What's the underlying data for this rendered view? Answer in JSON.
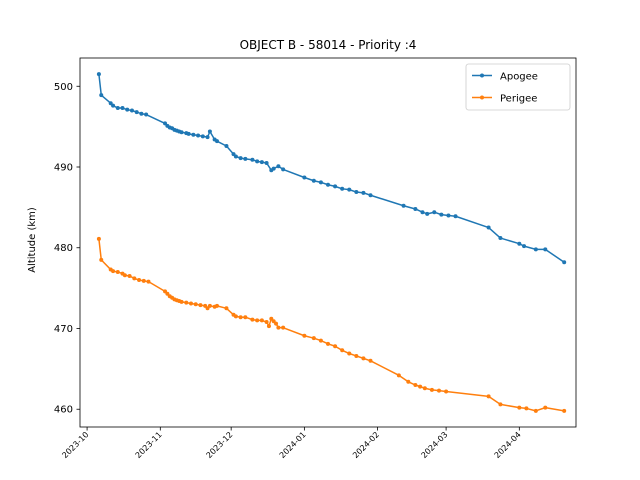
{
  "chart_data": {
    "type": "line",
    "title": "OBJECT B - 58014 - Priority :4",
    "xlabel": "",
    "ylabel": "Altitude (km)",
    "xlim": [
      "2023-09-28",
      "2024-04-25"
    ],
    "ylim": [
      457.8,
      503.5
    ],
    "x_ticks": [
      "2023-10",
      "2023-11",
      "2023-12",
      "2024-01",
      "2024-02",
      "2024-03",
      "2024-04"
    ],
    "y_ticks": [
      460,
      470,
      480,
      490,
      500
    ],
    "legend_position": "top-right",
    "grid": false,
    "series": [
      {
        "name": "Apogee",
        "color": "#1f77b4",
        "points": [
          [
            "2023-10-06",
            501.5
          ],
          [
            "2023-10-07",
            498.9
          ],
          [
            "2023-10-11",
            497.9
          ],
          [
            "2023-10-12",
            497.6
          ],
          [
            "2023-10-14",
            497.3
          ],
          [
            "2023-10-16",
            497.3
          ],
          [
            "2023-10-18",
            497.1
          ],
          [
            "2023-10-20",
            497.0
          ],
          [
            "2023-10-22",
            496.8
          ],
          [
            "2023-10-24",
            496.6
          ],
          [
            "2023-10-26",
            496.5
          ],
          [
            "2023-11-03",
            495.4
          ],
          [
            "2023-11-04",
            495.1
          ],
          [
            "2023-11-05",
            494.9
          ],
          [
            "2023-11-06",
            494.8
          ],
          [
            "2023-11-07",
            494.6
          ],
          [
            "2023-11-08",
            494.5
          ],
          [
            "2023-11-09",
            494.4
          ],
          [
            "2023-11-10",
            494.3
          ],
          [
            "2023-11-12",
            494.2
          ],
          [
            "2023-11-13",
            494.1
          ],
          [
            "2023-11-15",
            494.0
          ],
          [
            "2023-11-17",
            493.9
          ],
          [
            "2023-11-19",
            493.8
          ],
          [
            "2023-11-21",
            493.7
          ],
          [
            "2023-11-22",
            494.4
          ],
          [
            "2023-11-24",
            493.4
          ],
          [
            "2023-11-25",
            493.2
          ],
          [
            "2023-11-29",
            492.6
          ],
          [
            "2023-12-02",
            491.6
          ],
          [
            "2023-12-03",
            491.3
          ],
          [
            "2023-12-05",
            491.1
          ],
          [
            "2023-12-07",
            491.0
          ],
          [
            "2023-12-10",
            490.9
          ],
          [
            "2023-12-12",
            490.7
          ],
          [
            "2023-12-14",
            490.6
          ],
          [
            "2023-12-16",
            490.5
          ],
          [
            "2023-12-18",
            489.6
          ],
          [
            "2023-12-19",
            489.8
          ],
          [
            "2023-12-21",
            490.1
          ],
          [
            "2023-12-23",
            489.7
          ],
          [
            "2024-01-01",
            488.7
          ],
          [
            "2024-01-05",
            488.3
          ],
          [
            "2024-01-08",
            488.1
          ],
          [
            "2024-01-11",
            487.8
          ],
          [
            "2024-01-14",
            487.6
          ],
          [
            "2024-01-17",
            487.3
          ],
          [
            "2024-01-20",
            487.2
          ],
          [
            "2024-01-23",
            486.9
          ],
          [
            "2024-01-26",
            486.8
          ],
          [
            "2024-01-29",
            486.5
          ],
          [
            "2024-02-12",
            485.2
          ],
          [
            "2024-02-17",
            484.8
          ],
          [
            "2024-02-20",
            484.4
          ],
          [
            "2024-02-22",
            484.2
          ],
          [
            "2024-02-25",
            484.4
          ],
          [
            "2024-02-28",
            484.1
          ],
          [
            "2024-03-02",
            484.0
          ],
          [
            "2024-03-05",
            483.9
          ],
          [
            "2024-03-19",
            482.5
          ],
          [
            "2024-03-24",
            481.2
          ],
          [
            "2024-04-01",
            480.5
          ],
          [
            "2024-04-03",
            480.2
          ],
          [
            "2024-04-08",
            479.8
          ],
          [
            "2024-04-12",
            479.8
          ],
          [
            "2024-04-20",
            478.2
          ]
        ]
      },
      {
        "name": "Perigee",
        "color": "#ff7f0e",
        "points": [
          [
            "2023-10-06",
            481.1
          ],
          [
            "2023-10-07",
            478.5
          ],
          [
            "2023-10-11",
            477.3
          ],
          [
            "2023-10-12",
            477.1
          ],
          [
            "2023-10-14",
            477.0
          ],
          [
            "2023-10-16",
            476.8
          ],
          [
            "2023-10-17",
            476.6
          ],
          [
            "2023-10-19",
            476.5
          ],
          [
            "2023-10-21",
            476.2
          ],
          [
            "2023-10-23",
            476.0
          ],
          [
            "2023-10-25",
            475.9
          ],
          [
            "2023-10-27",
            475.8
          ],
          [
            "2023-11-03",
            474.6
          ],
          [
            "2023-11-04",
            474.3
          ],
          [
            "2023-11-05",
            474.0
          ],
          [
            "2023-11-06",
            473.8
          ],
          [
            "2023-11-07",
            473.6
          ],
          [
            "2023-11-08",
            473.5
          ],
          [
            "2023-11-09",
            473.4
          ],
          [
            "2023-11-10",
            473.3
          ],
          [
            "2023-11-12",
            473.2
          ],
          [
            "2023-11-14",
            473.1
          ],
          [
            "2023-11-16",
            473.0
          ],
          [
            "2023-11-18",
            472.9
          ],
          [
            "2023-11-20",
            472.8
          ],
          [
            "2023-11-21",
            472.5
          ],
          [
            "2023-11-22",
            472.8
          ],
          [
            "2023-11-24",
            472.7
          ],
          [
            "2023-11-25",
            472.8
          ],
          [
            "2023-11-29",
            472.5
          ],
          [
            "2023-12-02",
            471.7
          ],
          [
            "2023-12-03",
            471.5
          ],
          [
            "2023-12-05",
            471.4
          ],
          [
            "2023-12-07",
            471.4
          ],
          [
            "2023-12-10",
            471.1
          ],
          [
            "2023-12-12",
            471.0
          ],
          [
            "2023-12-14",
            471.0
          ],
          [
            "2023-12-16",
            470.8
          ],
          [
            "2023-12-17",
            470.3
          ],
          [
            "2023-12-18",
            471.2
          ],
          [
            "2023-12-19",
            470.9
          ],
          [
            "2023-12-20",
            470.6
          ],
          [
            "2023-12-21",
            470.1
          ],
          [
            "2023-12-23",
            470.1
          ],
          [
            "2024-01-01",
            469.1
          ],
          [
            "2024-01-05",
            468.8
          ],
          [
            "2024-01-08",
            468.5
          ],
          [
            "2024-01-11",
            468.1
          ],
          [
            "2024-01-14",
            467.8
          ],
          [
            "2024-01-17",
            467.3
          ],
          [
            "2024-01-20",
            466.9
          ],
          [
            "2024-01-23",
            466.6
          ],
          [
            "2024-01-26",
            466.3
          ],
          [
            "2024-01-29",
            466.0
          ],
          [
            "2024-02-10",
            464.2
          ],
          [
            "2024-02-14",
            463.4
          ],
          [
            "2024-02-17",
            463.0
          ],
          [
            "2024-02-19",
            462.8
          ],
          [
            "2024-02-21",
            462.6
          ],
          [
            "2024-02-24",
            462.4
          ],
          [
            "2024-02-27",
            462.3
          ],
          [
            "2024-03-01",
            462.2
          ],
          [
            "2024-03-19",
            461.6
          ],
          [
            "2024-03-24",
            460.6
          ],
          [
            "2024-04-01",
            460.2
          ],
          [
            "2024-04-04",
            460.1
          ],
          [
            "2024-04-08",
            459.8
          ],
          [
            "2024-04-12",
            460.2
          ],
          [
            "2024-04-20",
            459.8
          ]
        ]
      }
    ]
  }
}
